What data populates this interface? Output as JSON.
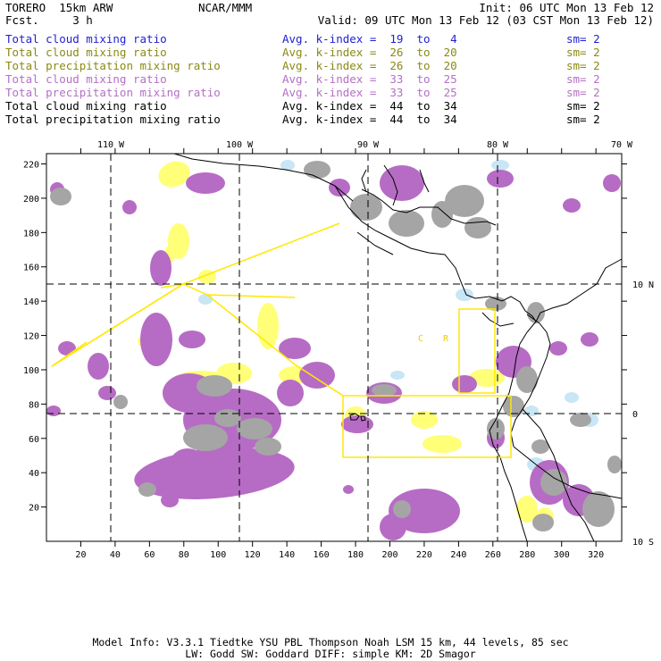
{
  "header": {
    "title_line": "TORERO  15km ARW",
    "fcst_line": "Fcst.     3 h",
    "org": "NCAR/MMM",
    "init": "Init: 06 UTC Mon 13 Feb 12",
    "valid": "Valid: 09 UTC Mon 13 Feb 12 (03 CST Mon 13 Feb 12)"
  },
  "legend": [
    {
      "field": "Total cloud mixing ratio",
      "avg": "Avg. k-index =  19  to   4",
      "sm": "sm= 2",
      "color": "#1f1fd0"
    },
    {
      "field": "Total cloud mixing ratio",
      "avg": "Avg. k-index =  26  to  20",
      "sm": "sm= 2",
      "color": "#8a8a14"
    },
    {
      "field": "Total precipitation mixing ratio",
      "avg": "Avg. k-index =  26  to  20",
      "sm": "sm= 2",
      "color": "#8a8a14"
    },
    {
      "field": "Total cloud mixing ratio",
      "avg": "Avg. k-index =  33  to  25",
      "sm": "sm= 2",
      "color": "#b470c4"
    },
    {
      "field": "Total precipitation mixing ratio",
      "avg": "Avg. k-index =  33  to  25",
      "sm": "sm= 2",
      "color": "#b470c4"
    },
    {
      "field": "Total cloud mixing ratio",
      "avg": "Avg. k-index =  44  to  34",
      "sm": "sm= 2",
      "color": "#000000"
    },
    {
      "field": "Total precipitation mixing ratio",
      "avg": "Avg. k-index =  44  to  34",
      "sm": "sm= 2",
      "color": "#000000"
    }
  ],
  "axes": {
    "x_ticks": [
      "20",
      "40",
      "60",
      "80",
      "100",
      "120",
      "140",
      "160",
      "180",
      "200",
      "220",
      "240",
      "260",
      "280",
      "300",
      "320"
    ],
    "y_ticks": [
      "20",
      "40",
      "60",
      "80",
      "100",
      "120",
      "140",
      "160",
      "180",
      "200",
      "220"
    ],
    "lon_labels": [
      "110 W",
      "100 W",
      "90 W",
      "80 W",
      "70 W"
    ],
    "lat_labels": [
      "10 N",
      "0",
      "10 S"
    ]
  },
  "map_text": [
    "C",
    "R"
  ],
  "colors": {
    "cloud_deep": "#a5a5a5",
    "precip_deep": "#b66cc4",
    "cloud_mid": "#ffff78",
    "cloud_shallow": "#c8e6f5",
    "boxes": "#ffe800"
  },
  "footer": {
    "line1": "Model Info: V3.3.1   Tiedtke YSU PBL  Thompson    Noah LSM  15 km,   44 levels,   85 sec",
    "line2": "LW: Godd SW: Goddard DIFF: simple KM: 2D Smagor"
  }
}
